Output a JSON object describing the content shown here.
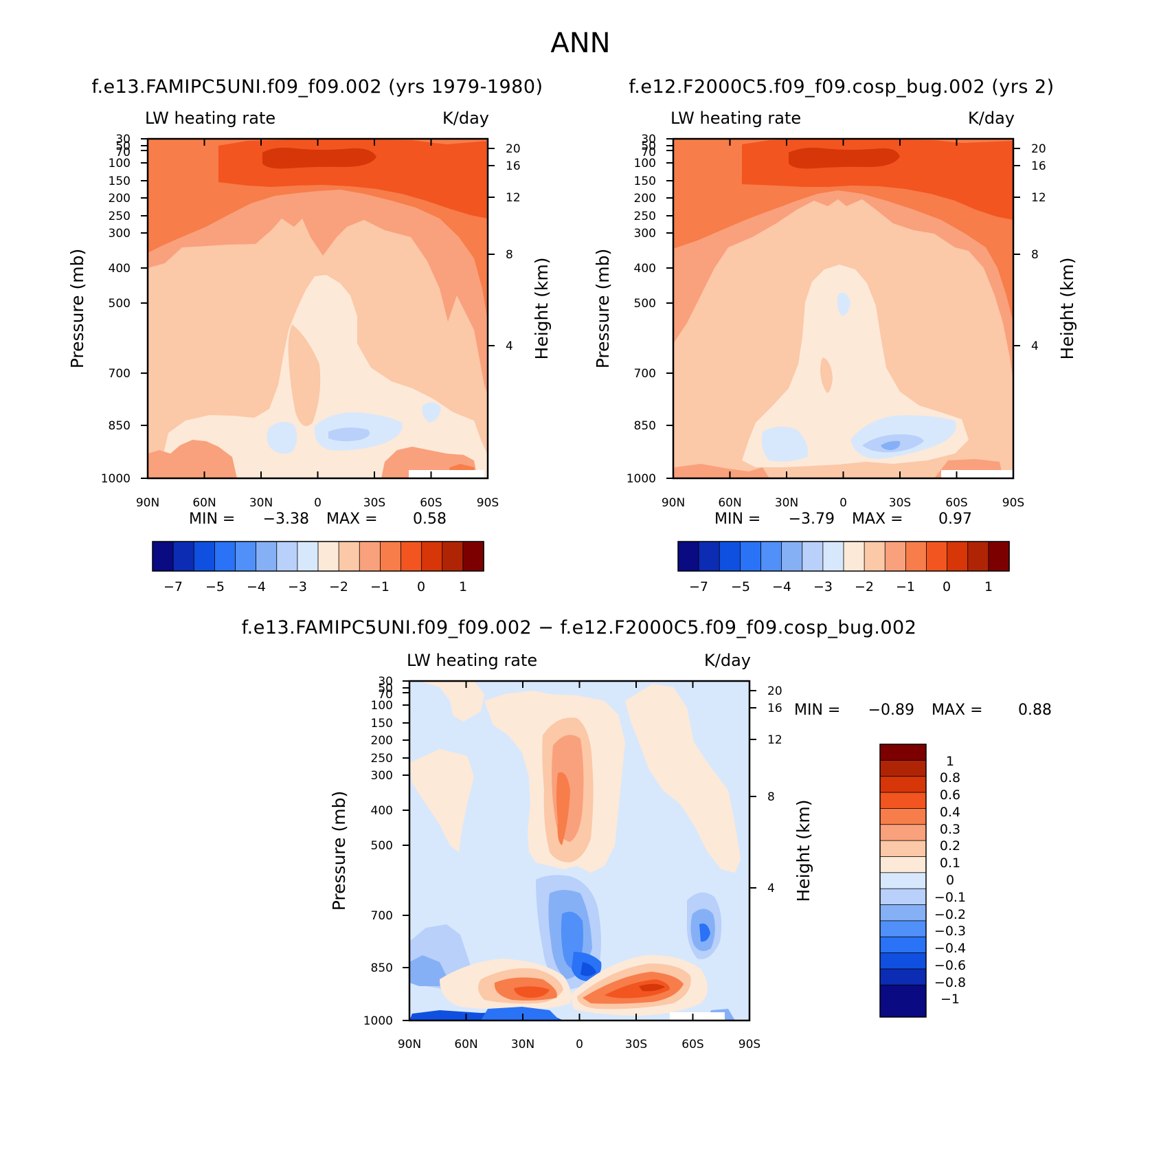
{
  "figure": {
    "title": "ANN"
  },
  "chart_data": [
    {
      "type": "contour",
      "title": "f.e13.FAMIPC5UNI.f09_f09.002 (yrs 1979-1980)",
      "left_label": "LW heating rate",
      "right_label": "K/day",
      "xlabel": "",
      "ylabel": "Pressure (mb)",
      "y2label": "Height (km)",
      "x_ticks": [
        "90N",
        "60N",
        "30N",
        "0",
        "30S",
        "60S",
        "90S"
      ],
      "y_ticks": [
        "30",
        "50",
        "70",
        "100",
        "150",
        "200",
        "250",
        "300",
        "400",
        "500",
        "700",
        "850",
        "1000"
      ],
      "y2_ticks": [
        "20",
        "16",
        "12",
        "8",
        "4"
      ],
      "min_label": "MIN =",
      "min_value": "−3.38",
      "max_label": "MAX =",
      "max_value": "0.58",
      "colorbar_labels": [
        "−7",
        "−5",
        "−4",
        "−3",
        "−2",
        "−1",
        "0",
        "1"
      ],
      "colorbar_colors": [
        "#0a0a82",
        "#0c2cb4",
        "#1050e0",
        "#2a72f6",
        "#5090f8",
        "#86b0f6",
        "#b8d0fa",
        "#d8e8fc",
        "#fde9d8",
        "#fbc8a8",
        "#f9a17c",
        "#f77d4a",
        "#f25520",
        "#d63608",
        "#b02406",
        "#7c0000"
      ]
    },
    {
      "type": "contour",
      "title": "f.e12.F2000C5.f09_f09.cosp_bug.002 (yrs 2)",
      "left_label": "LW heating rate",
      "right_label": "K/day",
      "xlabel": "",
      "ylabel": "Pressure (mb)",
      "y2label": "Height (km)",
      "x_ticks": [
        "90N",
        "60N",
        "30N",
        "0",
        "30S",
        "60S",
        "90S"
      ],
      "y_ticks": [
        "30",
        "50",
        "70",
        "100",
        "150",
        "200",
        "250",
        "300",
        "400",
        "500",
        "700",
        "850",
        "1000"
      ],
      "y2_ticks": [
        "20",
        "16",
        "12",
        "8",
        "4"
      ],
      "min_label": "MIN =",
      "min_value": "−3.79",
      "max_label": "MAX =",
      "max_value": "0.97",
      "colorbar_labels": [
        "−7",
        "−5",
        "−4",
        "−3",
        "−2",
        "−1",
        "0",
        "1"
      ],
      "colorbar_colors": [
        "#0a0a82",
        "#0c2cb4",
        "#1050e0",
        "#2a72f6",
        "#5090f8",
        "#86b0f6",
        "#b8d0fa",
        "#d8e8fc",
        "#fde9d8",
        "#fbc8a8",
        "#f9a17c",
        "#f77d4a",
        "#f25520",
        "#d63608",
        "#b02406",
        "#7c0000"
      ]
    },
    {
      "type": "contour",
      "title": "f.e13.FAMIPC5UNI.f09_f09.002 − f.e12.F2000C5.f09_f09.cosp_bug.002",
      "left_label": "LW heating rate",
      "right_label": "K/day",
      "xlabel": "",
      "ylabel": "Pressure (mb)",
      "y2label": "Height (km)",
      "x_ticks": [
        "90N",
        "60N",
        "30N",
        "0",
        "30S",
        "60S",
        "90S"
      ],
      "y_ticks": [
        "30",
        "50",
        "70",
        "100",
        "150",
        "200",
        "250",
        "300",
        "400",
        "500",
        "700",
        "850",
        "1000"
      ],
      "y2_ticks": [
        "20",
        "16",
        "12",
        "8",
        "4"
      ],
      "min_label": "MIN =",
      "min_value": "−0.89",
      "max_label": "MAX =",
      "max_value": "0.88",
      "colorbar_labels": [
        "1",
        "0.8",
        "0.6",
        "0.4",
        "0.3",
        "0.2",
        "0.1",
        "0",
        "−0.1",
        "−0.2",
        "−0.3",
        "−0.4",
        "−0.6",
        "−0.8",
        "−1"
      ],
      "colorbar_colors": [
        "#7c0000",
        "#b02406",
        "#d63608",
        "#f25520",
        "#f77d4a",
        "#f9a17c",
        "#fbc8a8",
        "#fde9d8",
        "#d8e8fc",
        "#b8d0fa",
        "#86b0f6",
        "#5090f8",
        "#2a72f6",
        "#1050e0",
        "#0c2cb4",
        "#0a0a82"
      ]
    }
  ]
}
